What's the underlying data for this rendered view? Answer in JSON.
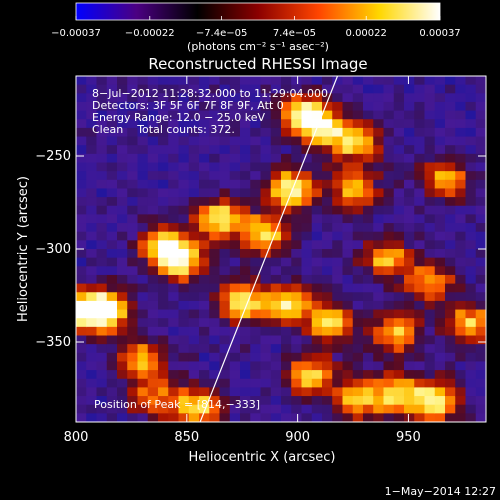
{
  "chart_data": {
    "type": "heatmap",
    "title": "Reconstructed RHESSI Image",
    "xlabel": "Heliocentric X (arcsec)",
    "ylabel": "Heliocentric Y (arcsec)",
    "xlim": [
      800,
      985
    ],
    "ylim": [
      -393,
      -207
    ],
    "x_ticks": [
      800,
      850,
      900,
      950
    ],
    "x_tick_labels": [
      "800",
      "850",
      "900",
      "950"
    ],
    "y_ticks": [
      -250,
      -300,
      -350
    ],
    "y_tick_labels": [
      "−250",
      "−300",
      "−350"
    ],
    "colorbar": {
      "min": -0.00037,
      "max": 0.00037,
      "ticks": [
        -0.00037,
        -0.00022,
        -7.4e-05,
        7.4e-05,
        0.00022,
        0.00037
      ],
      "tick_labels": [
        "−0.00037",
        "−0.00022",
        "−7.4e−05",
        "7.4e−05",
        "0.00022",
        "0.00037"
      ],
      "units_label": "(photons cm⁻² s⁻¹ asec⁻²)",
      "colormap": [
        "#0000ff",
        "#4b0082",
        "#000000",
        "#8b0000",
        "#ff4500",
        "#ffd700",
        "#ffffff"
      ]
    },
    "annotations": [
      "8−Jul−2012 11:28:32.000 to 11:29:04.000",
      "Detectors: 3F 5F 6F 7F 8F 9F, Att 0",
      "Energy Range: 12.0 − 25.0 keV",
      "Clean    Total counts: 372.",
      "Position of Peak = [814,−333]"
    ],
    "limb_line": [
      [
        856,
        -393
      ],
      [
        918,
        -207
      ]
    ],
    "bright_sources": [
      {
        "x": 902,
        "y": -228,
        "intensity": 0.9
      },
      {
        "x": 912,
        "y": -235,
        "intensity": 0.85
      },
      {
        "x": 927,
        "y": -243,
        "intensity": 0.8
      },
      {
        "x": 897,
        "y": -268,
        "intensity": 1.0
      },
      {
        "x": 865,
        "y": -284,
        "intensity": 0.95
      },
      {
        "x": 885,
        "y": -292,
        "intensity": 0.85
      },
      {
        "x": 840,
        "y": -298,
        "intensity": 0.9
      },
      {
        "x": 848,
        "y": -307,
        "intensity": 0.85
      },
      {
        "x": 925,
        "y": -268,
        "intensity": 0.75
      },
      {
        "x": 967,
        "y": -262,
        "intensity": 0.7
      },
      {
        "x": 940,
        "y": -305,
        "intensity": 0.75
      },
      {
        "x": 960,
        "y": -318,
        "intensity": 0.7
      },
      {
        "x": 804,
        "y": -333,
        "intensity": 1.0
      },
      {
        "x": 814,
        "y": -333,
        "intensity": 1.0
      },
      {
        "x": 830,
        "y": -360,
        "intensity": 0.8
      },
      {
        "x": 875,
        "y": -328,
        "intensity": 0.95
      },
      {
        "x": 895,
        "y": -330,
        "intensity": 0.9
      },
      {
        "x": 915,
        "y": -340,
        "intensity": 0.85
      },
      {
        "x": 945,
        "y": -345,
        "intensity": 0.8
      },
      {
        "x": 978,
        "y": -340,
        "intensity": 0.8
      },
      {
        "x": 905,
        "y": -368,
        "intensity": 0.85
      },
      {
        "x": 927,
        "y": -380,
        "intensity": 0.8
      },
      {
        "x": 962,
        "y": -382,
        "intensity": 1.0
      },
      {
        "x": 945,
        "y": -378,
        "intensity": 0.85
      },
      {
        "x": 855,
        "y": -385,
        "intensity": 0.85
      },
      {
        "x": 835,
        "y": -380,
        "intensity": 0.6
      }
    ]
  },
  "footer": {
    "timestamp": "1−May−2014 12:27"
  }
}
